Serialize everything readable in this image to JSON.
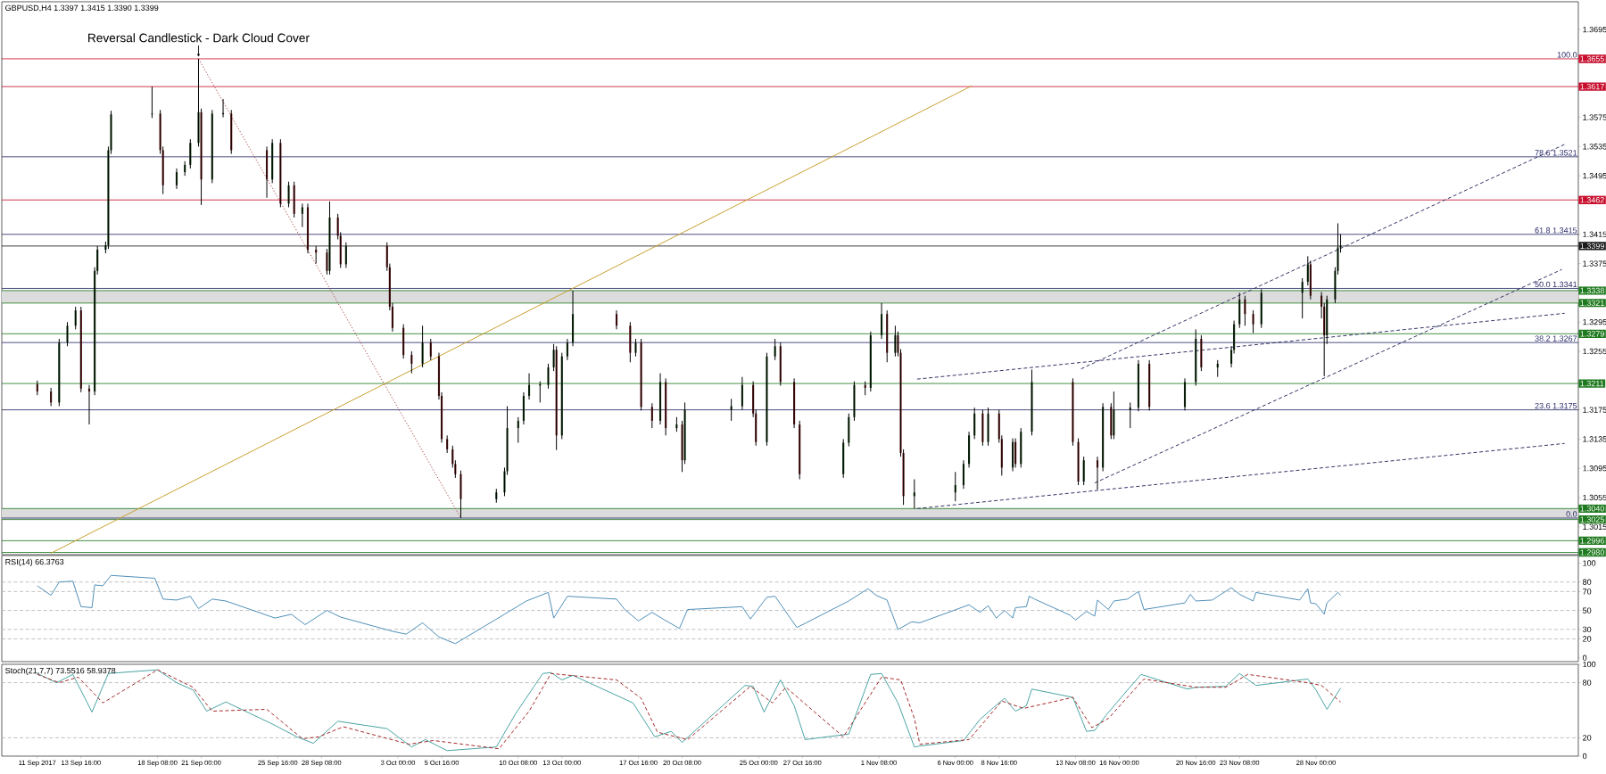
{
  "chart_data": [
    {
      "type": "candlestick",
      "title": "GBPUSD,H4 1.3397 1.3415 1.3390 1.3399",
      "xlim": [
        "2017-09-08T20:00",
        "2017-12-14T00:00"
      ],
      "ylim": [
        1.2977,
        1.3733
      ],
      "tick_labels": "y",
      "yticks": [
        1.3015,
        1.3055,
        1.3095,
        1.3135,
        1.3175,
        1.3255,
        1.3295,
        1.3375,
        1.3415,
        1.3495,
        1.3535,
        1.3575,
        1.3695
      ],
      "x": [
        "2017-09-11T00:00",
        "2017-09-11T20:00",
        "2017-09-12T08:00",
        "2017-09-12T20:00",
        "2017-09-13T08:00",
        "2017-09-13T16:00",
        "2017-09-14T04:00",
        "2017-09-14T12:00",
        "2017-09-14T16:00",
        "2017-09-15T04:00",
        "2017-09-15T08:00",
        "2017-09-15T12:00",
        "2017-09-18T00:00",
        "2017-09-18T12:00",
        "2017-09-18T16:00",
        "2017-09-19T12:00",
        "2017-09-20T00:00",
        "2017-09-20T08:00",
        "2017-09-20T20:00",
        "2017-09-21T00:00",
        "2017-09-21T16:00",
        "2017-09-22T08:00",
        "2017-09-22T20:00",
        "2017-09-25T00:00",
        "2017-09-25T08:00",
        "2017-09-25T20:00",
        "2017-09-26T08:00",
        "2017-09-26T16:00",
        "2017-09-27T04:00",
        "2017-09-27T12:00",
        "2017-09-28T00:00",
        "2017-09-28T16:00",
        "2017-09-28T20:00",
        "2017-09-29T08:00",
        "2017-09-29T12:00",
        "2017-09-29T20:00",
        "2017-10-02T08:00",
        "2017-10-02T12:00",
        "2017-10-02T16:00",
        "2017-10-03T08:00",
        "2017-10-03T20:00",
        "2017-10-04T12:00",
        "2017-10-05T00:00",
        "2017-10-05T12:00",
        "2017-10-05T16:00",
        "2017-10-06T00:00",
        "2017-10-06T08:00",
        "2017-10-06T12:00",
        "2017-10-06T20:00",
        "2017-10-09T00:00",
        "2017-10-09T12:00",
        "2017-10-09T16:00",
        "2017-10-10T08:00",
        "2017-10-10T16:00",
        "2017-10-11T00:00",
        "2017-10-11T16:00",
        "2017-10-12T04:00",
        "2017-10-12T12:00",
        "2017-10-12T16:00",
        "2017-10-13T00:00",
        "2017-10-13T08:00",
        "2017-10-13T16:00",
        "2017-10-16T08:00",
        "2017-10-17T04:00",
        "2017-10-17T12:00",
        "2017-10-17T20:00",
        "2017-10-18T12:00",
        "2017-10-19T00:00",
        "2017-10-19T08:00",
        "2017-10-20T00:00",
        "2017-10-20T08:00",
        "2017-10-20T12:00",
        "2017-10-23T08:00",
        "2017-10-24T00:00",
        "2017-10-24T16:00",
        "2017-10-24T20:00",
        "2017-10-25T12:00",
        "2017-10-26T00:00",
        "2017-10-26T08:00",
        "2017-10-27T04:00",
        "2017-10-27T12:00",
        "2017-10-30T04:00",
        "2017-10-30T12:00",
        "2017-10-30T20:00",
        "2017-10-31T12:00",
        "2017-10-31T20:00",
        "2017-11-01T12:00",
        "2017-11-01T20:00",
        "2017-11-02T08:00",
        "2017-11-02T12:00",
        "2017-11-02T16:00",
        "2017-11-02T20:00",
        "2017-11-03T12:00",
        "2017-11-06T00:00",
        "2017-11-06T12:00",
        "2017-11-06T20:00",
        "2017-11-07T04:00",
        "2017-11-07T16:00",
        "2017-11-08T00:00",
        "2017-11-08T16:00",
        "2017-11-08T20:00",
        "2017-11-09T12:00",
        "2017-11-09T16:00",
        "2017-11-10T00:00",
        "2017-11-10T16:00",
        "2017-11-13T04:00",
        "2017-11-13T12:00",
        "2017-11-13T20:00",
        "2017-11-14T16:00",
        "2017-11-15T00:00",
        "2017-11-15T12:00",
        "2017-11-15T16:00",
        "2017-11-16T16:00",
        "2017-11-17T04:00",
        "2017-11-17T20:00",
        "2017-11-20T00:00",
        "2017-11-20T16:00",
        "2017-11-21T00:00",
        "2017-11-22T00:00",
        "2017-11-22T20:00",
        "2017-11-23T00:00",
        "2017-11-23T08:00",
        "2017-11-23T16:00",
        "2017-11-24T04:00",
        "2017-11-24T16:00",
        "2017-11-27T04:00",
        "2017-11-27T12:00",
        "2017-11-27T16:00",
        "2017-11-28T08:00",
        "2017-11-28T12:00",
        "2017-11-28T16:00",
        "2017-11-29T04:00",
        "2017-11-29T08:00",
        "2017-11-29T12:00"
      ],
      "ohlc": [
        [
          1.321,
          1.3215,
          1.3195,
          1.32
        ],
        [
          1.32,
          1.3205,
          1.318,
          1.3185
        ],
        [
          1.3185,
          1.3272,
          1.318,
          1.3267
        ],
        [
          1.3267,
          1.3295,
          1.3262,
          1.329
        ],
        [
          1.329,
          1.3316,
          1.3285,
          1.3311
        ],
        [
          1.3311,
          1.3316,
          1.3199,
          1.3204
        ],
        [
          1.3204,
          1.3209,
          1.3155,
          1.32
        ],
        [
          1.32,
          1.337,
          1.3195,
          1.3365
        ],
        [
          1.3365,
          1.3399,
          1.336,
          1.3394
        ],
        [
          1.3394,
          1.3405,
          1.3389,
          1.34
        ],
        [
          1.34,
          1.3535,
          1.3395,
          1.353
        ],
        [
          1.353,
          1.3584,
          1.3525,
          1.3579
        ],
        [
          1.3579,
          1.3617,
          1.3574,
          1.358
        ],
        [
          1.358,
          1.3585,
          1.3525,
          1.353
        ],
        [
          1.353,
          1.3535,
          1.347,
          1.3482
        ],
        [
          1.3482,
          1.3505,
          1.3477,
          1.35
        ],
        [
          1.35,
          1.3515,
          1.3495,
          1.351
        ],
        [
          1.351,
          1.3545,
          1.3505,
          1.354
        ],
        [
          1.354,
          1.3655,
          1.3535,
          1.3582
        ],
        [
          1.3582,
          1.3587,
          1.3455,
          1.349
        ],
        [
          1.349,
          1.3585,
          1.3485,
          1.358
        ],
        [
          1.358,
          1.36,
          1.3575,
          1.358
        ],
        [
          1.358,
          1.3585,
          1.3525,
          1.353
        ],
        [
          1.353,
          1.3535,
          1.3465,
          1.349
        ],
        [
          1.349,
          1.3545,
          1.3485,
          1.354
        ],
        [
          1.354,
          1.3545,
          1.3452,
          1.3457
        ],
        [
          1.3457,
          1.3487,
          1.3452,
          1.3482
        ],
        [
          1.3482,
          1.3487,
          1.3438,
          1.3443
        ],
        [
          1.3443,
          1.3457,
          1.3425,
          1.3452
        ],
        [
          1.3452,
          1.3457,
          1.3389,
          1.3394
        ],
        [
          1.3394,
          1.3399,
          1.3375,
          1.339
        ],
        [
          1.339,
          1.3395,
          1.336,
          1.3365
        ],
        [
          1.3365,
          1.346,
          1.336,
          1.3438
        ],
        [
          1.3438,
          1.3443,
          1.3408,
          1.3413
        ],
        [
          1.3413,
          1.3418,
          1.3369,
          1.3374
        ],
        [
          1.3374,
          1.3404,
          1.3369,
          1.3399
        ],
        [
          1.3399,
          1.3404,
          1.3365,
          1.337
        ],
        [
          1.337,
          1.3375,
          1.3311,
          1.3316
        ],
        [
          1.3316,
          1.3321,
          1.3282,
          1.3287
        ],
        [
          1.3287,
          1.3292,
          1.3245,
          1.325
        ],
        [
          1.325,
          1.3255,
          1.3225,
          1.3238
        ],
        [
          1.3238,
          1.329,
          1.3233,
          1.3267
        ],
        [
          1.3267,
          1.3272,
          1.3243,
          1.3248
        ],
        [
          1.3248,
          1.3253,
          1.3189,
          1.3194
        ],
        [
          1.3194,
          1.3199,
          1.313,
          1.3135
        ],
        [
          1.3135,
          1.314,
          1.3116,
          1.3121
        ],
        [
          1.3121,
          1.3126,
          1.3096,
          1.3101
        ],
        [
          1.3101,
          1.3106,
          1.3082,
          1.3087
        ],
        [
          1.3087,
          1.3092,
          1.3027,
          1.3053
        ],
        [
          1.3053,
          1.3067,
          1.3048,
          1.3062
        ],
        [
          1.3062,
          1.3096,
          1.3057,
          1.3091
        ],
        [
          1.3091,
          1.318,
          1.3086,
          1.315
        ],
        [
          1.315,
          1.3165,
          1.313,
          1.316
        ],
        [
          1.316,
          1.3199,
          1.3155,
          1.3194
        ],
        [
          1.3194,
          1.3225,
          1.3189,
          1.3209
        ],
        [
          1.3209,
          1.3214,
          1.3185,
          1.3209
        ],
        [
          1.3209,
          1.3238,
          1.3204,
          1.3233
        ],
        [
          1.3233,
          1.3265,
          1.3228,
          1.3257
        ],
        [
          1.3257,
          1.3262,
          1.312,
          1.314
        ],
        [
          1.314,
          1.3253,
          1.3135,
          1.3248
        ],
        [
          1.3248,
          1.3272,
          1.3243,
          1.3267
        ],
        [
          1.3267,
          1.3338,
          1.3262,
          1.3306
        ],
        [
          1.3306,
          1.3311,
          1.3285,
          1.329
        ],
        [
          1.329,
          1.3295,
          1.324,
          1.3253
        ],
        [
          1.3253,
          1.3272,
          1.3248,
          1.3267
        ],
        [
          1.3267,
          1.3272,
          1.3174,
          1.3179
        ],
        [
          1.3179,
          1.3184,
          1.315,
          1.316
        ],
        [
          1.316,
          1.3225,
          1.3155,
          1.3213
        ],
        [
          1.3213,
          1.3218,
          1.314,
          1.315
        ],
        [
          1.315,
          1.3165,
          1.3145,
          1.3155
        ],
        [
          1.3155,
          1.316,
          1.309,
          1.3106
        ],
        [
          1.3106,
          1.3185,
          1.3101,
          1.3175
        ],
        [
          1.3175,
          1.319,
          1.316,
          1.318
        ],
        [
          1.318,
          1.322,
          1.3175,
          1.3209
        ],
        [
          1.3209,
          1.3214,
          1.3165,
          1.317
        ],
        [
          1.317,
          1.3175,
          1.3126,
          1.3131
        ],
        [
          1.3131,
          1.3253,
          1.3126,
          1.3248
        ],
        [
          1.3248,
          1.3272,
          1.3243,
          1.3262
        ],
        [
          1.3262,
          1.3267,
          1.3208,
          1.3213
        ],
        [
          1.3213,
          1.3218,
          1.315,
          1.3155
        ],
        [
          1.3155,
          1.316,
          1.308,
          1.3087
        ],
        [
          1.3087,
          1.3135,
          1.3082,
          1.313
        ],
        [
          1.313,
          1.317,
          1.3125,
          1.3165
        ],
        [
          1.3165,
          1.3214,
          1.316,
          1.3209
        ],
        [
          1.3209,
          1.3214,
          1.3195,
          1.3205
        ],
        [
          1.3205,
          1.3282,
          1.32,
          1.3277
        ],
        [
          1.3277,
          1.3321,
          1.3272,
          1.3306
        ],
        [
          1.3306,
          1.3311,
          1.324,
          1.3253
        ],
        [
          1.3253,
          1.329,
          1.3248,
          1.3277
        ],
        [
          1.3277,
          1.3282,
          1.3248,
          1.3253
        ],
        [
          1.3253,
          1.3258,
          1.3111,
          1.3116
        ],
        [
          1.3116,
          1.3121,
          1.3045,
          1.3057
        ],
        [
          1.3057,
          1.308,
          1.304,
          1.3062
        ],
        [
          1.3062,
          1.309,
          1.305,
          1.3072
        ],
        [
          1.3072,
          1.3106,
          1.3067,
          1.3101
        ],
        [
          1.3101,
          1.3145,
          1.3096,
          1.314
        ],
        [
          1.314,
          1.3178,
          1.3135,
          1.317
        ],
        [
          1.317,
          1.3175,
          1.3126,
          1.3131
        ],
        [
          1.3131,
          1.3178,
          1.3126,
          1.317
        ],
        [
          1.317,
          1.3175,
          1.313,
          1.3135
        ],
        [
          1.3135,
          1.314,
          1.3085,
          1.3096
        ],
        [
          1.3096,
          1.3136,
          1.3091,
          1.3131
        ],
        [
          1.3131,
          1.3136,
          1.3096,
          1.3101
        ],
        [
          1.3101,
          1.315,
          1.3096,
          1.3145
        ],
        [
          1.3145,
          1.323,
          1.314,
          1.3213
        ],
        [
          1.3213,
          1.3218,
          1.3126,
          1.3131
        ],
        [
          1.3131,
          1.3136,
          1.3072,
          1.3077
        ],
        [
          1.3077,
          1.3111,
          1.3072,
          1.3106
        ],
        [
          1.3106,
          1.3111,
          1.3066,
          1.3096
        ],
        [
          1.3096,
          1.3184,
          1.3091,
          1.3179
        ],
        [
          1.3179,
          1.3184,
          1.3135,
          1.314
        ],
        [
          1.314,
          1.32,
          1.3135,
          1.3175
        ],
        [
          1.3175,
          1.3185,
          1.315,
          1.3178
        ],
        [
          1.3178,
          1.3243,
          1.3173,
          1.3238
        ],
        [
          1.3238,
          1.3243,
          1.3174,
          1.3179
        ],
        [
          1.3179,
          1.3218,
          1.3174,
          1.3213
        ],
        [
          1.3213,
          1.3285,
          1.3208,
          1.3272
        ],
        [
          1.3272,
          1.3277,
          1.3228,
          1.3233
        ],
        [
          1.3233,
          1.3243,
          1.322,
          1.3238
        ],
        [
          1.3238,
          1.3262,
          1.3233,
          1.3257
        ],
        [
          1.3257,
          1.3297,
          1.3252,
          1.3292
        ],
        [
          1.3292,
          1.3335,
          1.3287,
          1.3326
        ],
        [
          1.3326,
          1.3331,
          1.329,
          1.3306
        ],
        [
          1.3306,
          1.3311,
          1.328,
          1.3292
        ],
        [
          1.3292,
          1.334,
          1.3287,
          1.3335
        ],
        [
          1.3335,
          1.3355,
          1.33,
          1.335
        ],
        [
          1.335,
          1.3385,
          1.3345,
          1.3374
        ],
        [
          1.3374,
          1.3379,
          1.3326,
          1.3331
        ],
        [
          1.3331,
          1.3336,
          1.33,
          1.3316
        ],
        [
          1.3316,
          1.3321,
          1.3221,
          1.3277
        ],
        [
          1.3277,
          1.3331,
          1.3265,
          1.3326
        ],
        [
          1.3326,
          1.337,
          1.3321,
          1.3365
        ],
        [
          1.3365,
          1.343,
          1.336,
          1.3397
        ],
        [
          1.3397,
          1.3415,
          1.339,
          1.3399
        ]
      ],
      "series": [
        {
          "type": "line",
          "x": [
            "2017-09-11T20:00",
            "2017-11-07T00:00"
          ],
          "values": [
            1.2979,
            1.3618
          ],
          "color": "#c8a030",
          "line_style": "solid"
        },
        {
          "type": "line",
          "x": [
            "2017-09-20T20:00",
            "2017-10-06T20:00"
          ],
          "values": [
            1.3655,
            1.3027
          ],
          "color": "#b05050",
          "line_style": "dotted"
        },
        {
          "type": "line",
          "x": [
            "2017-11-13T16:00",
            "2017-12-13T04:00"
          ],
          "values": [
            1.3231,
            1.3538
          ],
          "color": "#333366",
          "line_style": "dashed"
        },
        {
          "type": "line",
          "x": [
            "2017-11-14T12:00",
            "2017-12-13T00:00"
          ],
          "values": [
            1.3075,
            1.3367
          ],
          "color": "#333366",
          "line_style": "dashed"
        },
        {
          "type": "line",
          "x": [
            "2017-11-03T16:00",
            "2017-12-13T04:00"
          ],
          "values": [
            1.3217,
            1.3307
          ],
          "color": "#333366",
          "line_style": "dashed"
        },
        {
          "type": "line",
          "x": [
            "2017-11-03T16:00",
            "2017-12-13T04:00"
          ],
          "values": [
            1.304,
            1.3129
          ],
          "color": "#333366",
          "line_style": "dashed"
        }
      ],
      "bands": [
        {
          "axis": "y",
          "from": 1.3321,
          "to": 1.3338,
          "color": "#dcdcdc"
        },
        {
          "axis": "y",
          "from": 1.3025,
          "to": 1.304,
          "color": "#dcdcdc"
        }
      ],
      "ref_lines": [
        {
          "axis": "y",
          "value": 1.3521,
          "label": "78.6 1.3521",
          "color": "#2b2b6b"
        },
        {
          "axis": "y",
          "value": 1.3415,
          "label": "61.8 1.3415",
          "color": "#2b2b6b"
        },
        {
          "axis": "y",
          "value": 1.3341,
          "label": "50.0 1.3341",
          "color": "#2b2b6b"
        },
        {
          "axis": "y",
          "value": 1.3267,
          "label": "38.2 1.3267",
          "color": "#2b2b6b"
        },
        {
          "axis": "y",
          "value": 1.3175,
          "label": "23.6 1.3175",
          "color": "#2b2b6b"
        },
        {
          "axis": "y",
          "value": 1.3027,
          "color": "#2b2b6b"
        },
        {
          "axis": "y",
          "value": 1.3655,
          "label": "1.3655",
          "color": "#c8102e"
        },
        {
          "axis": "y",
          "value": 1.3617,
          "label": "1.3617",
          "color": "#c8102e"
        },
        {
          "axis": "y",
          "value": 1.3462,
          "label": "1.3462",
          "color": "#c8102e"
        },
        {
          "axis": "y",
          "value": 1.3399,
          "label": "1.3399",
          "color": "#1a1a1a"
        },
        {
          "axis": "y",
          "value": 1.3338,
          "label": "1.3338",
          "color": "#1f7a1f"
        },
        {
          "axis": "y",
          "value": 1.3321,
          "label": "1.3321",
          "color": "#1f7a1f"
        },
        {
          "axis": "y",
          "value": 1.3279,
          "label": "1.3279",
          "color": "#1f7a1f"
        },
        {
          "axis": "y",
          "value": 1.3211,
          "label": "1.3211",
          "color": "#1f7a1f"
        },
        {
          "axis": "y",
          "value": 1.304,
          "label": "1.3040",
          "color": "#1f7a1f"
        },
        {
          "axis": "y",
          "value": 1.3025,
          "label": "1.3025",
          "color": "#1f7a1f"
        },
        {
          "axis": "y",
          "value": 1.2996,
          "label": "1.2996",
          "color": "#1f7a1f"
        },
        {
          "axis": "y",
          "value": 1.298,
          "label": "1.2980",
          "color": "#1f7a1f"
        }
      ],
      "annotations": [
        {
          "text": "Reversal Candlestick - Dark Cloud Cover",
          "x": "2017-09-20T20:00",
          "y": 1.3655
        },
        {
          "text": "100.0",
          "x": "2017-12-14T00:00",
          "y": 1.3655
        },
        {
          "text": "0.0",
          "x": "2017-12-14T00:00",
          "y": 1.3027
        }
      ]
    },
    {
      "type": "line",
      "title": "RSI(14) 66.3763",
      "xlim": [
        "2017-09-08T20:00",
        "2017-12-14T00:00"
      ],
      "ylim": [
        -4,
        108
      ],
      "tick_labels": "y",
      "yticks": [
        0,
        20,
        30,
        50,
        70,
        80,
        100
      ],
      "color": "#4f8fb8",
      "x": [
        "2017-09-11T00:00",
        "2017-09-11T20:00",
        "2017-09-12T08:00",
        "2017-09-13T04:00",
        "2017-09-13T16:00",
        "2017-09-14T08:00",
        "2017-09-14T12:00",
        "2017-09-15T00:00",
        "2017-09-15T12:00",
        "2017-09-18T04:00",
        "2017-09-18T16:00",
        "2017-09-19T12:00",
        "2017-09-20T08:00",
        "2017-09-20T20:00",
        "2017-09-21T16:00",
        "2017-09-22T12:00",
        "2017-09-25T12:00",
        "2017-09-26T12:00",
        "2017-09-27T08:00",
        "2017-09-28T16:00",
        "2017-09-29T12:00",
        "2017-10-02T16:00",
        "2017-10-03T12:00",
        "2017-10-04T12:00",
        "2017-10-05T12:00",
        "2017-10-06T12:00",
        "2017-10-09T12:00",
        "2017-10-10T20:00",
        "2017-10-12T04:00",
        "2017-10-12T12:00",
        "2017-10-13T08:00",
        "2017-10-16T08:00",
        "2017-10-16T20:00",
        "2017-10-17T16:00",
        "2017-10-18T12:00",
        "2017-10-19T04:00",
        "2017-10-20T04:00",
        "2017-10-20T16:00",
        "2017-10-24T00:00",
        "2017-10-24T12:00",
        "2017-10-25T12:00",
        "2017-10-26T00:00",
        "2017-10-27T08:00",
        "2017-10-30T12:00",
        "2017-10-31T16:00",
        "2017-11-01T04:00",
        "2017-11-01T20:00",
        "2017-11-02T12:00",
        "2017-11-03T08:00",
        "2017-11-03T20:00",
        "2017-11-06T20:00",
        "2017-11-07T12:00",
        "2017-11-08T00:00",
        "2017-11-08T12:00",
        "2017-11-09T00:00",
        "2017-11-09T12:00",
        "2017-11-09T16:00",
        "2017-11-10T08:00",
        "2017-11-10T12:00",
        "2017-11-10T20:00",
        "2017-11-13T00:00",
        "2017-11-13T08:00",
        "2017-11-14T00:00",
        "2017-11-14T12:00",
        "2017-11-14T16:00",
        "2017-11-15T08:00",
        "2017-11-15T16:00",
        "2017-11-16T12:00",
        "2017-11-17T04:00",
        "2017-11-17T12:00",
        "2017-11-20T00:00",
        "2017-11-20T08:00",
        "2017-11-20T16:00",
        "2017-11-21T16:00",
        "2017-11-22T20:00",
        "2017-11-23T08:00",
        "2017-11-24T04:00",
        "2017-11-24T08:00",
        "2017-11-27T00:00",
        "2017-11-27T12:00",
        "2017-11-27T16:00",
        "2017-11-28T00:00",
        "2017-11-28T12:00",
        "2017-11-28T16:00",
        "2017-11-29T08:00",
        "2017-11-29T12:00"
      ],
      "values": [
        76,
        66,
        80,
        81,
        54,
        53,
        77,
        76,
        87,
        84,
        62,
        61,
        65,
        52,
        62,
        60,
        42,
        46,
        35,
        50,
        43,
        28,
        25,
        37,
        22,
        15,
        46,
        60,
        69,
        42,
        65,
        62,
        51,
        39,
        48,
        41,
        31,
        51,
        54,
        41,
        64,
        65,
        32,
        60,
        73,
        66,
        61,
        30,
        38,
        37,
        56,
        48,
        55,
        42,
        50,
        42,
        53,
        54,
        65,
        62,
        45,
        40,
        49,
        44,
        61,
        51,
        60,
        62,
        70,
        51,
        58,
        67,
        60,
        61,
        74,
        67,
        60,
        69,
        61,
        73,
        58,
        57,
        46,
        58,
        69,
        66
      ],
      "ref_lines": [
        {
          "axis": "y",
          "value": 80,
          "color": "#b4b4b4",
          "line_style": "dashed"
        },
        {
          "axis": "y",
          "value": 70,
          "color": "#b4b4b4",
          "line_style": "dashed"
        },
        {
          "axis": "y",
          "value": 50,
          "color": "#b4b4b4",
          "line_style": "dashed"
        },
        {
          "axis": "y",
          "value": 30,
          "color": "#b4b4b4",
          "line_style": "dashed"
        },
        {
          "axis": "y",
          "value": 20,
          "color": "#b4b4b4",
          "line_style": "dashed"
        }
      ]
    },
    {
      "type": "line",
      "title": "Stoch(21,7,7) 73.5516 58.9378",
      "xlim": [
        "2017-09-08T20:00",
        "2017-12-14T00:00"
      ],
      "ylim": [
        0,
        100
      ],
      "yticks": [
        0,
        20,
        80,
        100
      ],
      "xticks": [
        {
          "value": "2017-09-11T00:00",
          "label": "11 Sep 2017"
        },
        {
          "value": "2017-09-13T16:00",
          "label": "13 Sep 16:00"
        },
        {
          "value": "2017-09-18T08:00",
          "label": "18 Sep 08:00"
        },
        {
          "value": "2017-09-21T00:00",
          "label": "21 Sep 00:00"
        },
        {
          "value": "2017-09-25T16:00",
          "label": "25 Sep 16:00"
        },
        {
          "value": "2017-09-28T08:00",
          "label": "28 Sep 08:00"
        },
        {
          "value": "2017-10-03T00:00",
          "label": "3 Oct 00:00"
        },
        {
          "value": "2017-10-05T16:00",
          "label": "5 Oct 16:00"
        },
        {
          "value": "2017-10-10T08:00",
          "label": "10 Oct 08:00"
        },
        {
          "value": "2017-10-13T00:00",
          "label": "13 Oct 00:00"
        },
        {
          "value": "2017-10-17T16:00",
          "label": "17 Oct 16:00"
        },
        {
          "value": "2017-10-20T08:00",
          "label": "20 Oct 08:00"
        },
        {
          "value": "2017-10-25T00:00",
          "label": "25 Oct 00:00"
        },
        {
          "value": "2017-10-27T16:00",
          "label": "27 Oct 16:00"
        },
        {
          "value": "2017-11-01T08:00",
          "label": "1 Nov 08:00"
        },
        {
          "value": "2017-11-06T00:00",
          "label": "6 Nov 00:00"
        },
        {
          "value": "2017-11-08T16:00",
          "label": "8 Nov 16:00"
        },
        {
          "value": "2017-11-13T08:00",
          "label": "13 Nov 08:00"
        },
        {
          "value": "2017-11-16T00:00",
          "label": "16 Nov 00:00"
        },
        {
          "value": "2017-11-20T16:00",
          "label": "20 Nov 16:00"
        },
        {
          "value": "2017-11-23T08:00",
          "label": "23 Nov 08:00"
        },
        {
          "value": "2017-11-28T00:00",
          "label": "28 Nov 00:00"
        }
      ],
      "series": [
        {
          "x": [
            "2017-09-11T00:00",
            "2017-09-12T04:00",
            "2017-09-13T04:00",
            "2017-09-14T08:00",
            "2017-09-15T08:00",
            "2017-09-18T08:00",
            "2017-09-19T12:00",
            "2017-09-20T12:00",
            "2017-09-21T08:00",
            "2017-09-22T12:00",
            "2017-09-25T08:00",
            "2017-09-26T20:00",
            "2017-09-27T20:00",
            "2017-09-29T08:00",
            "2017-10-02T08:00",
            "2017-10-03T20:00",
            "2017-10-04T16:00",
            "2017-10-06T00:00",
            "2017-10-09T00:00",
            "2017-10-10T04:00",
            "2017-10-11T20:00",
            "2017-10-12T08:00",
            "2017-10-13T00:00",
            "2017-10-13T16:00",
            "2017-10-17T08:00",
            "2017-10-18T16:00",
            "2017-10-19T16:00",
            "2017-10-20T08:00",
            "2017-10-24T04:00",
            "2017-10-24T16:00",
            "2017-10-25T08:00",
            "2017-10-26T08:00",
            "2017-10-27T04:00",
            "2017-10-27T20:00",
            "2017-10-30T12:00",
            "2017-10-31T20:00",
            "2017-11-01T12:00",
            "2017-11-02T12:00",
            "2017-11-03T12:00",
            "2017-11-03T20:00",
            "2017-11-06T12:00",
            "2017-11-07T12:00",
            "2017-11-08T08:00",
            "2017-11-09T00:00",
            "2017-11-09T16:00",
            "2017-11-10T08:00",
            "2017-11-10T16:00",
            "2017-11-13T04:00",
            "2017-11-14T00:00",
            "2017-11-14T12:00",
            "2017-11-15T04:00",
            "2017-11-15T20:00",
            "2017-11-16T12:00",
            "2017-11-17T08:00",
            "2017-11-20T04:00",
            "2017-11-20T16:00",
            "2017-11-22T12:00",
            "2017-11-23T08:00",
            "2017-11-24T08:00",
            "2017-11-27T12:00",
            "2017-11-28T00:00",
            "2017-11-28T16:00",
            "2017-11-29T12:00"
          ],
          "values": [
            90,
            80,
            89,
            48,
            90,
            94,
            80,
            72,
            49,
            59,
            35,
            21,
            14,
            38,
            30,
            10,
            18,
            6,
            10,
            46,
            90,
            91,
            83,
            88,
            58,
            21,
            27,
            15,
            77,
            76,
            48,
            83,
            55,
            18,
            24,
            89,
            90,
            58,
            10,
            11,
            17,
            40,
            53,
            63,
            49,
            55,
            73,
            64,
            27,
            28,
            44,
            58,
            72,
            89,
            73,
            75,
            76,
            90,
            77,
            84,
            72,
            51,
            74
          ],
          "color": "#4aa3a3",
          "line_style": "solid"
        },
        {
          "x": [
            "2017-09-11T00:00",
            "2017-09-12T08:00",
            "2017-09-13T12:00",
            "2017-09-15T00:00",
            "2017-09-18T08:00",
            "2017-09-20T12:00",
            "2017-09-21T16:00",
            "2017-09-25T00:00",
            "2017-09-27T04:00",
            "2017-09-28T04:00",
            "2017-09-29T16:00",
            "2017-10-03T16:00",
            "2017-10-05T04:00",
            "2017-10-09T04:00",
            "2017-10-11T00:00",
            "2017-10-12T08:00",
            "2017-10-16T08:00",
            "2017-10-17T20:00",
            "2017-10-18T20:00",
            "2017-10-20T16:00",
            "2017-10-24T12:00",
            "2017-10-25T20:00",
            "2017-10-26T16:00",
            "2017-10-30T04:00",
            "2017-11-01T12:00",
            "2017-11-02T16:00",
            "2017-11-03T12:00",
            "2017-11-03T20:00",
            "2017-11-06T20:00",
            "2017-11-08T20:00",
            "2017-11-10T04:00",
            "2017-11-13T04:00",
            "2017-11-14T08:00",
            "2017-11-15T08:00",
            "2017-11-17T12:00",
            "2017-11-20T16:00",
            "2017-11-22T12:00",
            "2017-11-23T20:00",
            "2017-11-27T12:00",
            "2017-11-28T08:00",
            "2017-11-29T12:00"
          ],
          "values": [
            89,
            80,
            86,
            58,
            94,
            75,
            49,
            51,
            19,
            21,
            32,
            13,
            17,
            8,
            49,
            90,
            83,
            63,
            26,
            18,
            76,
            58,
            75,
            21,
            86,
            83,
            41,
            13,
            18,
            60,
            52,
            64,
            31,
            41,
            84,
            75,
            75,
            89,
            80,
            77,
            59
          ],
          "color": "#a52a2a",
          "line_style": "dashed"
        }
      ],
      "ref_lines": [
        {
          "axis": "y",
          "value": 80,
          "color": "#b4b4b4",
          "line_style": "dashed"
        },
        {
          "axis": "y",
          "value": 20,
          "color": "#b4b4b4",
          "line_style": "dashed"
        }
      ]
    }
  ]
}
